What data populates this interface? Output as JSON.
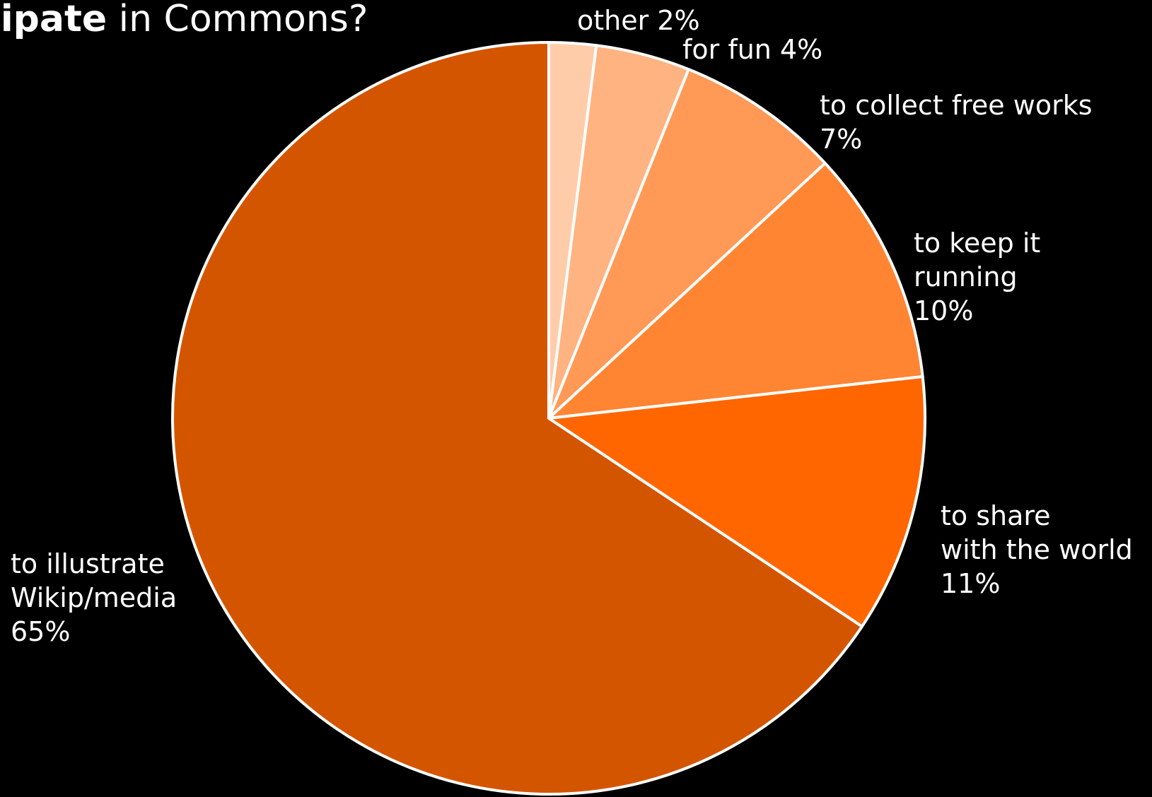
{
  "chart_data": {
    "type": "pie",
    "title_bold": "cipate",
    "title_rest": " in Commons?",
    "colors": {
      "background": "#000000",
      "stroke": "#ffffff",
      "text": "#ffffff"
    },
    "slices": [
      {
        "label_lines": [
          "other 2%"
        ],
        "value": 2,
        "color": "#ffccaa"
      },
      {
        "label_lines": [
          "for fun 4%"
        ],
        "value": 4,
        "color": "#ffb380"
      },
      {
        "label_lines": [
          "to collect free works",
          "7%"
        ],
        "value": 7,
        "color": "#ff9955"
      },
      {
        "label_lines": [
          "to keep it",
          "running",
          "10%"
        ],
        "value": 10,
        "color": "#ff8533"
      },
      {
        "label_lines": [
          "to share",
          "with the world",
          "11%"
        ],
        "value": 11,
        "color": "#ff6600"
      },
      {
        "label_lines": [
          "to illustrate",
          "Wikip/media",
          "65%"
        ],
        "value": 65,
        "color": "#d45500"
      }
    ]
  }
}
